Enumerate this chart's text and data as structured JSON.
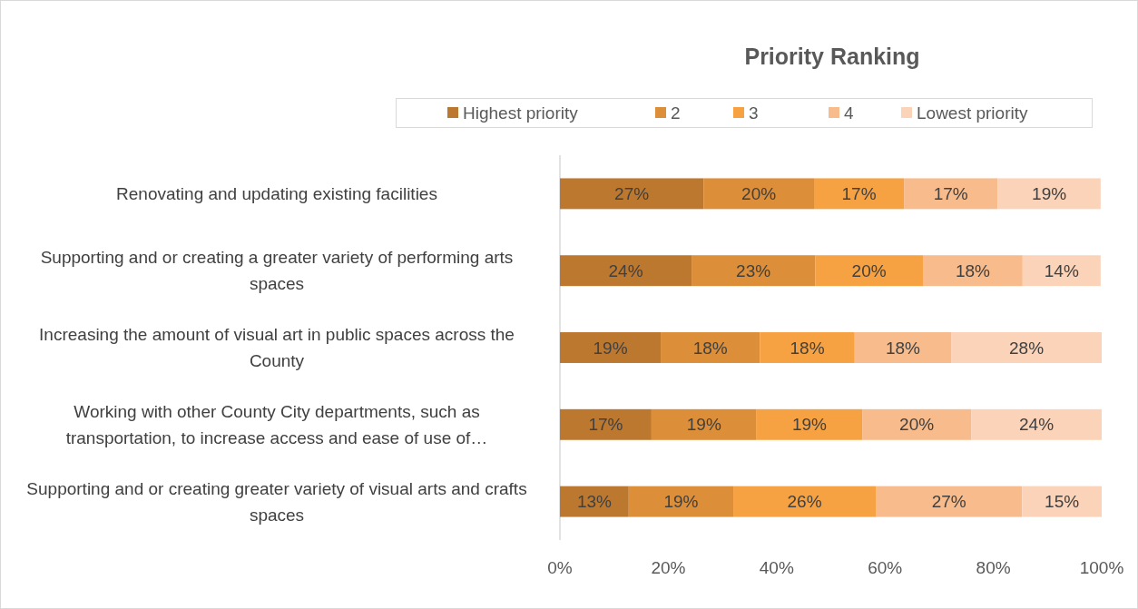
{
  "chart_data": {
    "type": "bar",
    "orientation": "horizontal",
    "stacked": true,
    "title": "Priority Ranking",
    "categories": [
      "Renovating and updating existing facilities",
      "Supporting and or creating a greater variety of performing arts spaces",
      "Increasing the amount of visual art in public spaces across the County",
      "Working with other County City departments, such as transportation, to increase access and ease of use of…",
      "Supporting and or creating greater variety of visual arts and crafts spaces"
    ],
    "series": [
      {
        "name": "Highest priority",
        "color": "#bd7830",
        "values": [
          26.5,
          24.3,
          18.6,
          16.9,
          12.7
        ],
        "value_labels": [
          "27%",
          "24%",
          "19%",
          "17%",
          "13%"
        ]
      },
      {
        "name": "2",
        "color": "#dc8e38",
        "values": [
          20.4,
          22.8,
          18.3,
          19.4,
          19.3
        ],
        "value_labels": [
          "20%",
          "23%",
          "18%",
          "19%",
          "19%"
        ]
      },
      {
        "name": "3",
        "color": "#f7a242",
        "values": [
          16.6,
          19.9,
          17.5,
          19.5,
          26.3
        ],
        "value_labels": [
          "17%",
          "20%",
          "18%",
          "19%",
          "26%"
        ]
      },
      {
        "name": "4",
        "color": "#f8bb8b",
        "values": [
          17.3,
          18.4,
          17.8,
          20.1,
          27.0
        ],
        "value_labels": [
          "17%",
          "18%",
          "18%",
          "20%",
          "27%"
        ]
      },
      {
        "name": "Lowest priority",
        "color": "#fbd3b8",
        "values": [
          19.0,
          14.4,
          27.8,
          24.1,
          14.7
        ],
        "value_labels": [
          "19%",
          "14%",
          "28%",
          "24%",
          "15%"
        ]
      }
    ],
    "xlim": [
      0,
      100
    ],
    "xticks": [
      {
        "value": 0,
        "label": "0%"
      },
      {
        "value": 20,
        "label": "20%"
      },
      {
        "value": 40,
        "label": "40%"
      },
      {
        "value": 60,
        "label": "60%"
      },
      {
        "value": 80,
        "label": "80%"
      },
      {
        "value": 100,
        "label": "100%"
      }
    ],
    "grid": false,
    "legend": "top"
  }
}
